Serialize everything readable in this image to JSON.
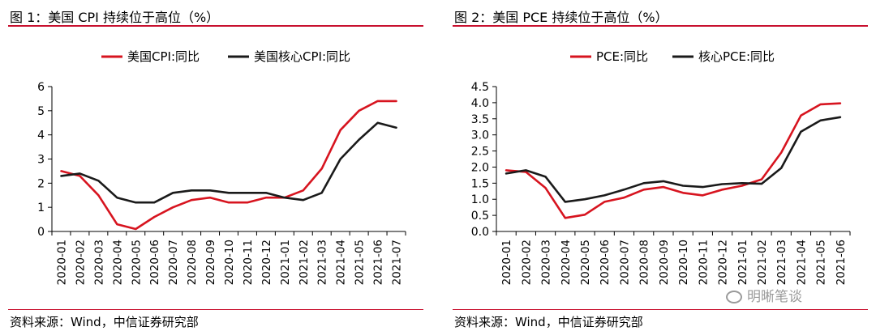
{
  "panels": [
    {
      "title": "图 1：美国 CPI 持续位于高位（%）",
      "source": "资料来源：Wind，中信证券研究部"
    },
    {
      "title": "图 2：美国 PCE 持续位于高位（%）",
      "source": "资料来源：Wind，中信证券研究部"
    }
  ],
  "watermark": "明晰笔谈",
  "colors": {
    "accent": "#c8102e",
    "series_red": "#d7141f",
    "series_black": "#1a1a1a"
  },
  "chart_data": [
    {
      "type": "line",
      "title": "美国 CPI 持续位于高位（%）",
      "categories": [
        "2020-01",
        "2020-02",
        "2020-03",
        "2020-04",
        "2020-05",
        "2020-06",
        "2020-07",
        "2020-08",
        "2020-09",
        "2020-10",
        "2020-11",
        "2020-12",
        "2021-01",
        "2021-02",
        "2021-03",
        "2021-04",
        "2021-05",
        "2021-06",
        "2021-07"
      ],
      "y_ticks": [
        "0",
        "1",
        "2",
        "3",
        "4",
        "5",
        "6"
      ],
      "ylim": [
        0,
        6
      ],
      "grid": false,
      "legend_position": "top",
      "series": [
        {
          "name": "美国CPI:同比",
          "color": "#d7141f",
          "values": [
            2.5,
            2.3,
            1.5,
            0.3,
            0.1,
            0.6,
            1.0,
            1.3,
            1.4,
            1.2,
            1.2,
            1.4,
            1.4,
            1.7,
            2.6,
            4.2,
            5.0,
            5.4,
            5.4
          ]
        },
        {
          "name": "美国核心CPI:同比",
          "color": "#1a1a1a",
          "values": [
            2.3,
            2.4,
            2.1,
            1.4,
            1.2,
            1.2,
            1.6,
            1.7,
            1.7,
            1.6,
            1.6,
            1.6,
            1.4,
            1.3,
            1.6,
            3.0,
            3.8,
            4.5,
            4.3
          ]
        }
      ]
    },
    {
      "type": "line",
      "title": "美国 PCE 持续位于高位（%）",
      "categories": [
        "2020-01",
        "2020-02",
        "2020-03",
        "2020-04",
        "2020-05",
        "2020-06",
        "2020-07",
        "2020-08",
        "2020-09",
        "2020-10",
        "2020-11",
        "2020-12",
        "2021-01",
        "2021-02",
        "2021-03",
        "2021-04",
        "2021-05",
        "2021-06"
      ],
      "y_ticks": [
        "0.0",
        "0.5",
        "1.0",
        "1.5",
        "2.0",
        "2.5",
        "3.0",
        "3.5",
        "4.0",
        "4.5"
      ],
      "ylim": [
        0,
        4.5
      ],
      "grid": false,
      "legend_position": "top",
      "series": [
        {
          "name": "PCE:同比",
          "color": "#d7141f",
          "values": [
            1.9,
            1.85,
            1.35,
            0.42,
            0.52,
            0.92,
            1.05,
            1.3,
            1.38,
            1.2,
            1.12,
            1.3,
            1.42,
            1.62,
            2.45,
            3.6,
            3.95,
            3.98
          ]
        },
        {
          "name": "核心PCE:同比",
          "color": "#1a1a1a",
          "values": [
            1.8,
            1.9,
            1.7,
            0.92,
            1.0,
            1.12,
            1.3,
            1.5,
            1.56,
            1.42,
            1.38,
            1.47,
            1.5,
            1.48,
            1.97,
            3.1,
            3.45,
            3.55
          ]
        }
      ]
    }
  ]
}
